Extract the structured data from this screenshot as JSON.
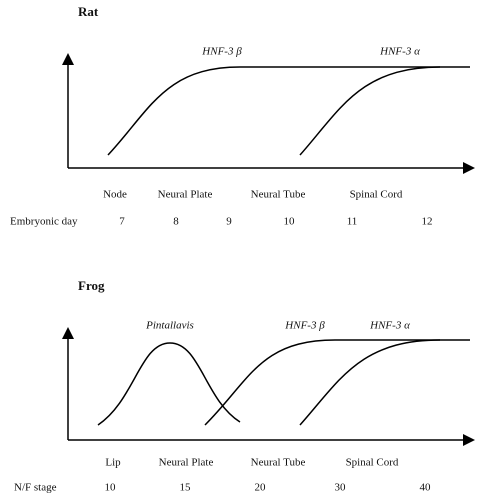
{
  "rat": {
    "title": "Rat",
    "curve_labels": [
      "HNF-3 β",
      "HNF-3 α"
    ],
    "stages": [
      "Node",
      "Neural Plate",
      "Neural Tube",
      "Spinal Cord"
    ],
    "axis_label": "Embryonic day",
    "days": [
      7,
      8,
      9,
      10,
      11,
      12
    ]
  },
  "frog": {
    "title": "Frog",
    "curve_labels": [
      "Pintallavis",
      "HNF-3 β",
      "HNF-3 α"
    ],
    "stages": [
      "Lip",
      "Neural Plate",
      "Neural Tube",
      "Spinal Cord"
    ],
    "axis_label": "N/F stage",
    "stage_numbers": [
      10,
      15,
      20,
      30,
      40
    ]
  }
}
